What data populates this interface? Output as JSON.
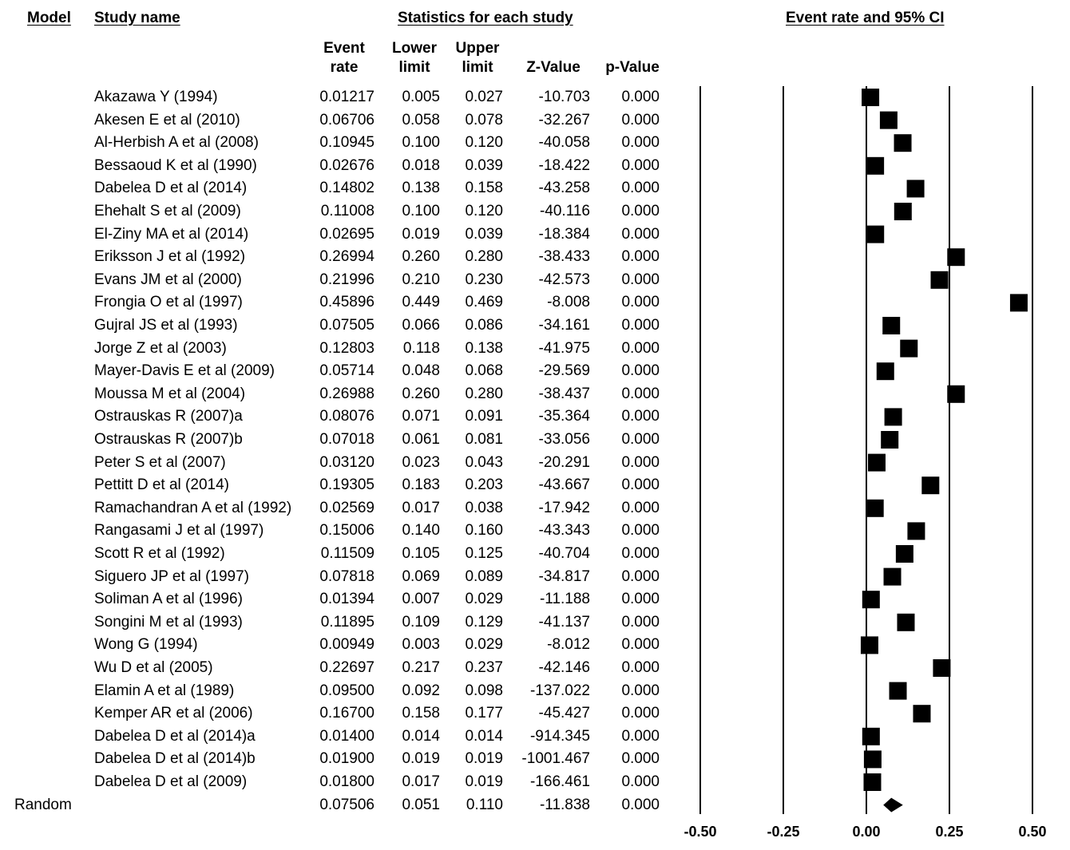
{
  "headers": {
    "model": "Model",
    "study_name": "Study name",
    "statistics": "Statistics for each study",
    "plot": "Event rate and 95% CI"
  },
  "columns": {
    "event_rate": [
      "Event",
      "rate"
    ],
    "lower_limit": [
      "Lower",
      "limit"
    ],
    "upper_limit": [
      "Upper",
      "limit"
    ],
    "z_value": "Z-Value",
    "p_value": "p-Value"
  },
  "studies": [
    {
      "name": "Akazawa Y (1994)",
      "event_rate": "0.01217",
      "lower": "0.005",
      "upper": "0.027",
      "z": "-10.703",
      "p": "0.000"
    },
    {
      "name": "Akesen E et al (2010)",
      "event_rate": "0.06706",
      "lower": "0.058",
      "upper": "0.078",
      "z": "-32.267",
      "p": "0.000"
    },
    {
      "name": "Al-Herbish A et al (2008)",
      "event_rate": "0.10945",
      "lower": "0.100",
      "upper": "0.120",
      "z": "-40.058",
      "p": "0.000"
    },
    {
      "name": "Bessaoud K et al (1990)",
      "event_rate": "0.02676",
      "lower": "0.018",
      "upper": "0.039",
      "z": "-18.422",
      "p": "0.000"
    },
    {
      "name": "Dabelea D et al (2014)",
      "event_rate": "0.14802",
      "lower": "0.138",
      "upper": "0.158",
      "z": "-43.258",
      "p": "0.000"
    },
    {
      "name": "Ehehalt S et al (2009)",
      "event_rate": "0.11008",
      "lower": "0.100",
      "upper": "0.120",
      "z": "-40.116",
      "p": "0.000"
    },
    {
      "name": "El-Ziny MA et al (2014)",
      "event_rate": "0.02695",
      "lower": "0.019",
      "upper": "0.039",
      "z": "-18.384",
      "p": "0.000"
    },
    {
      "name": "Eriksson J et al (1992)",
      "event_rate": "0.26994",
      "lower": "0.260",
      "upper": "0.280",
      "z": "-38.433",
      "p": "0.000"
    },
    {
      "name": "Evans JM et al (2000)",
      "event_rate": "0.21996",
      "lower": "0.210",
      "upper": "0.230",
      "z": "-42.573",
      "p": "0.000"
    },
    {
      "name": "Frongia O et al (1997)",
      "event_rate": "0.45896",
      "lower": "0.449",
      "upper": "0.469",
      "z": "-8.008",
      "p": "0.000"
    },
    {
      "name": "Gujral JS et al (1993)",
      "event_rate": "0.07505",
      "lower": "0.066",
      "upper": "0.086",
      "z": "-34.161",
      "p": "0.000"
    },
    {
      "name": "Jorge Z et al (2003)",
      "event_rate": "0.12803",
      "lower": "0.118",
      "upper": "0.138",
      "z": "-41.975",
      "p": "0.000"
    },
    {
      "name": "Mayer-Davis E et al (2009)",
      "event_rate": "0.05714",
      "lower": "0.048",
      "upper": "0.068",
      "z": "-29.569",
      "p": "0.000"
    },
    {
      "name": "Moussa M et al (2004)",
      "event_rate": "0.26988",
      "lower": "0.260",
      "upper": "0.280",
      "z": "-38.437",
      "p": "0.000"
    },
    {
      "name": "Ostrauskas R (2007)a",
      "event_rate": "0.08076",
      "lower": "0.071",
      "upper": "0.091",
      "z": "-35.364",
      "p": "0.000"
    },
    {
      "name": "Ostrauskas R (2007)b",
      "event_rate": "0.07018",
      "lower": "0.061",
      "upper": "0.081",
      "z": "-33.056",
      "p": "0.000"
    },
    {
      "name": "Peter S et al (2007)",
      "event_rate": "0.03120",
      "lower": "0.023",
      "upper": "0.043",
      "z": "-20.291",
      "p": "0.000"
    },
    {
      "name": "Pettitt D et al (2014)",
      "event_rate": "0.19305",
      "lower": "0.183",
      "upper": "0.203",
      "z": "-43.667",
      "p": "0.000"
    },
    {
      "name": "Ramachandran A et al (1992)",
      "event_rate": "0.02569",
      "lower": "0.017",
      "upper": "0.038",
      "z": "-17.942",
      "p": "0.000"
    },
    {
      "name": "Rangasami J et al (1997)",
      "event_rate": "0.15006",
      "lower": "0.140",
      "upper": "0.160",
      "z": "-43.343",
      "p": "0.000"
    },
    {
      "name": "Scott R et al (1992)",
      "event_rate": "0.11509",
      "lower": "0.105",
      "upper": "0.125",
      "z": "-40.704",
      "p": "0.000"
    },
    {
      "name": "Siguero JP et al (1997)",
      "event_rate": "0.07818",
      "lower": "0.069",
      "upper": "0.089",
      "z": "-34.817",
      "p": "0.000"
    },
    {
      "name": "Soliman A et al (1996)",
      "event_rate": "0.01394",
      "lower": "0.007",
      "upper": "0.029",
      "z": "-11.188",
      "p": "0.000"
    },
    {
      "name": "Songini M et al (1993)",
      "event_rate": "0.11895",
      "lower": "0.109",
      "upper": "0.129",
      "z": "-41.137",
      "p": "0.000"
    },
    {
      "name": "Wong G (1994)",
      "event_rate": "0.00949",
      "lower": "0.003",
      "upper": "0.029",
      "z": "-8.012",
      "p": "0.000"
    },
    {
      "name": "Wu D et al (2005)",
      "event_rate": "0.22697",
      "lower": "0.217",
      "upper": "0.237",
      "z": "-42.146",
      "p": "0.000"
    },
    {
      "name": "Elamin A et al (1989)",
      "event_rate": "0.09500",
      "lower": "0.092",
      "upper": "0.098",
      "z": "-137.022",
      "p": "0.000"
    },
    {
      "name": "Kemper AR et al (2006)",
      "event_rate": "0.16700",
      "lower": "0.158",
      "upper": "0.177",
      "z": "-45.427",
      "p": "0.000"
    },
    {
      "name": "Dabelea D et al (2014)a",
      "event_rate": "0.01400",
      "lower": "0.014",
      "upper": "0.014",
      "z": "-914.345",
      "p": "0.000"
    },
    {
      "name": "Dabelea D et al (2014)b",
      "event_rate": "0.01900",
      "lower": "0.019",
      "upper": "0.019",
      "z": "-1001.467",
      "p": "0.000"
    },
    {
      "name": "Dabelea D et al (2009)",
      "event_rate": "0.01800",
      "lower": "0.017",
      "upper": "0.019",
      "z": "-166.461",
      "p": "0.000"
    }
  ],
  "summary": {
    "model": "Random",
    "event_rate": "0.07506",
    "lower": "0.051",
    "upper": "0.110",
    "z": "-11.838",
    "p": "0.000"
  },
  "chart_data": {
    "type": "forest",
    "title": "Event rate and 95% CI",
    "xlim": [
      -0.5,
      0.5
    ],
    "xticks": [
      -0.5,
      -0.25,
      0.0,
      0.25,
      0.5
    ],
    "xtick_labels": [
      "-0.50",
      "-0.25",
      "0.00",
      "0.25",
      "0.50"
    ],
    "reference_line": 0.0,
    "points": [
      0.01217,
      0.06706,
      0.10945,
      0.02676,
      0.14802,
      0.11008,
      0.02695,
      0.26994,
      0.21996,
      0.45896,
      0.07505,
      0.12803,
      0.05714,
      0.26988,
      0.08076,
      0.07018,
      0.0312,
      0.19305,
      0.02569,
      0.15006,
      0.11509,
      0.07818,
      0.01394,
      0.11895,
      0.00949,
      0.22697,
      0.095,
      0.167,
      0.014,
      0.019,
      0.018
    ],
    "summary_point": 0.07506,
    "summary_ci": [
      0.051,
      0.11
    ]
  }
}
